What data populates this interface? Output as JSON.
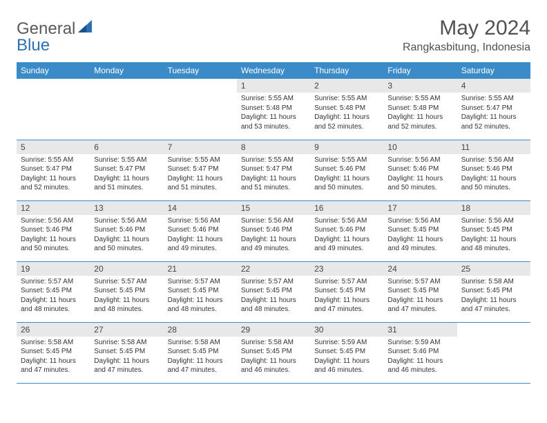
{
  "logo": {
    "general": "General",
    "blue": "Blue"
  },
  "title": "May 2024",
  "location": "Rangkasbitung, Indonesia",
  "days_of_week": [
    "Sunday",
    "Monday",
    "Tuesday",
    "Wednesday",
    "Thursday",
    "Friday",
    "Saturday"
  ],
  "colors": {
    "header_bg": "#3b8bc9",
    "header_text": "#ffffff",
    "daynum_bg": "#e8e8e8",
    "border": "#3b8bc9",
    "logo_general": "#5a5a5a",
    "logo_blue": "#2d6fb5",
    "body_text": "#333333"
  },
  "weeks": [
    [
      {
        "n": "",
        "sunrise": "",
        "sunset": "",
        "daylight": ""
      },
      {
        "n": "",
        "sunrise": "",
        "sunset": "",
        "daylight": ""
      },
      {
        "n": "",
        "sunrise": "",
        "sunset": "",
        "daylight": ""
      },
      {
        "n": "1",
        "sunrise": "Sunrise: 5:55 AM",
        "sunset": "Sunset: 5:48 PM",
        "daylight": "Daylight: 11 hours and 53 minutes."
      },
      {
        "n": "2",
        "sunrise": "Sunrise: 5:55 AM",
        "sunset": "Sunset: 5:48 PM",
        "daylight": "Daylight: 11 hours and 52 minutes."
      },
      {
        "n": "3",
        "sunrise": "Sunrise: 5:55 AM",
        "sunset": "Sunset: 5:48 PM",
        "daylight": "Daylight: 11 hours and 52 minutes."
      },
      {
        "n": "4",
        "sunrise": "Sunrise: 5:55 AM",
        "sunset": "Sunset: 5:47 PM",
        "daylight": "Daylight: 11 hours and 52 minutes."
      }
    ],
    [
      {
        "n": "5",
        "sunrise": "Sunrise: 5:55 AM",
        "sunset": "Sunset: 5:47 PM",
        "daylight": "Daylight: 11 hours and 52 minutes."
      },
      {
        "n": "6",
        "sunrise": "Sunrise: 5:55 AM",
        "sunset": "Sunset: 5:47 PM",
        "daylight": "Daylight: 11 hours and 51 minutes."
      },
      {
        "n": "7",
        "sunrise": "Sunrise: 5:55 AM",
        "sunset": "Sunset: 5:47 PM",
        "daylight": "Daylight: 11 hours and 51 minutes."
      },
      {
        "n": "8",
        "sunrise": "Sunrise: 5:55 AM",
        "sunset": "Sunset: 5:47 PM",
        "daylight": "Daylight: 11 hours and 51 minutes."
      },
      {
        "n": "9",
        "sunrise": "Sunrise: 5:55 AM",
        "sunset": "Sunset: 5:46 PM",
        "daylight": "Daylight: 11 hours and 50 minutes."
      },
      {
        "n": "10",
        "sunrise": "Sunrise: 5:56 AM",
        "sunset": "Sunset: 5:46 PM",
        "daylight": "Daylight: 11 hours and 50 minutes."
      },
      {
        "n": "11",
        "sunrise": "Sunrise: 5:56 AM",
        "sunset": "Sunset: 5:46 PM",
        "daylight": "Daylight: 11 hours and 50 minutes."
      }
    ],
    [
      {
        "n": "12",
        "sunrise": "Sunrise: 5:56 AM",
        "sunset": "Sunset: 5:46 PM",
        "daylight": "Daylight: 11 hours and 50 minutes."
      },
      {
        "n": "13",
        "sunrise": "Sunrise: 5:56 AM",
        "sunset": "Sunset: 5:46 PM",
        "daylight": "Daylight: 11 hours and 50 minutes."
      },
      {
        "n": "14",
        "sunrise": "Sunrise: 5:56 AM",
        "sunset": "Sunset: 5:46 PM",
        "daylight": "Daylight: 11 hours and 49 minutes."
      },
      {
        "n": "15",
        "sunrise": "Sunrise: 5:56 AM",
        "sunset": "Sunset: 5:46 PM",
        "daylight": "Daylight: 11 hours and 49 minutes."
      },
      {
        "n": "16",
        "sunrise": "Sunrise: 5:56 AM",
        "sunset": "Sunset: 5:46 PM",
        "daylight": "Daylight: 11 hours and 49 minutes."
      },
      {
        "n": "17",
        "sunrise": "Sunrise: 5:56 AM",
        "sunset": "Sunset: 5:45 PM",
        "daylight": "Daylight: 11 hours and 49 minutes."
      },
      {
        "n": "18",
        "sunrise": "Sunrise: 5:56 AM",
        "sunset": "Sunset: 5:45 PM",
        "daylight": "Daylight: 11 hours and 48 minutes."
      }
    ],
    [
      {
        "n": "19",
        "sunrise": "Sunrise: 5:57 AM",
        "sunset": "Sunset: 5:45 PM",
        "daylight": "Daylight: 11 hours and 48 minutes."
      },
      {
        "n": "20",
        "sunrise": "Sunrise: 5:57 AM",
        "sunset": "Sunset: 5:45 PM",
        "daylight": "Daylight: 11 hours and 48 minutes."
      },
      {
        "n": "21",
        "sunrise": "Sunrise: 5:57 AM",
        "sunset": "Sunset: 5:45 PM",
        "daylight": "Daylight: 11 hours and 48 minutes."
      },
      {
        "n": "22",
        "sunrise": "Sunrise: 5:57 AM",
        "sunset": "Sunset: 5:45 PM",
        "daylight": "Daylight: 11 hours and 48 minutes."
      },
      {
        "n": "23",
        "sunrise": "Sunrise: 5:57 AM",
        "sunset": "Sunset: 5:45 PM",
        "daylight": "Daylight: 11 hours and 47 minutes."
      },
      {
        "n": "24",
        "sunrise": "Sunrise: 5:57 AM",
        "sunset": "Sunset: 5:45 PM",
        "daylight": "Daylight: 11 hours and 47 minutes."
      },
      {
        "n": "25",
        "sunrise": "Sunrise: 5:58 AM",
        "sunset": "Sunset: 5:45 PM",
        "daylight": "Daylight: 11 hours and 47 minutes."
      }
    ],
    [
      {
        "n": "26",
        "sunrise": "Sunrise: 5:58 AM",
        "sunset": "Sunset: 5:45 PM",
        "daylight": "Daylight: 11 hours and 47 minutes."
      },
      {
        "n": "27",
        "sunrise": "Sunrise: 5:58 AM",
        "sunset": "Sunset: 5:45 PM",
        "daylight": "Daylight: 11 hours and 47 minutes."
      },
      {
        "n": "28",
        "sunrise": "Sunrise: 5:58 AM",
        "sunset": "Sunset: 5:45 PM",
        "daylight": "Daylight: 11 hours and 47 minutes."
      },
      {
        "n": "29",
        "sunrise": "Sunrise: 5:58 AM",
        "sunset": "Sunset: 5:45 PM",
        "daylight": "Daylight: 11 hours and 46 minutes."
      },
      {
        "n": "30",
        "sunrise": "Sunrise: 5:59 AM",
        "sunset": "Sunset: 5:45 PM",
        "daylight": "Daylight: 11 hours and 46 minutes."
      },
      {
        "n": "31",
        "sunrise": "Sunrise: 5:59 AM",
        "sunset": "Sunset: 5:46 PM",
        "daylight": "Daylight: 11 hours and 46 minutes."
      },
      {
        "n": "",
        "sunrise": "",
        "sunset": "",
        "daylight": ""
      }
    ]
  ]
}
